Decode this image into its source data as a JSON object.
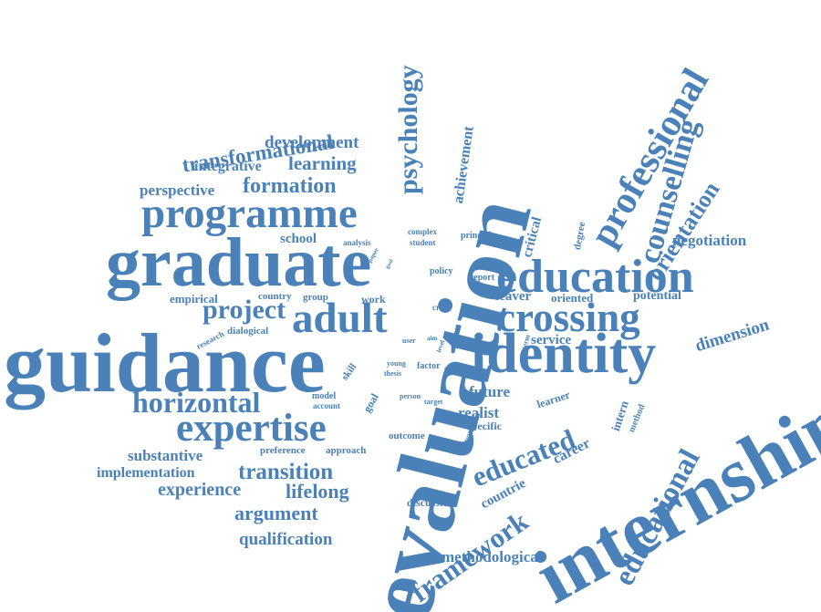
{
  "style": {
    "word_color": "#4a81b8",
    "background": "#ffffff"
  },
  "words": {
    "evaluation": "evaluation",
    "guidance": "guidance",
    "graduate": "graduate",
    "internship": "internship",
    "identity": "identity",
    "education": "education",
    "programme": "programme",
    "crossing": "crossing",
    "adult": "adult",
    "expertise": "expertise",
    "professional": "professional",
    "counselling": "counselling",
    "horizontal": "horizontal",
    "educational": "educational",
    "psychology": "psychology",
    "framework": "framework",
    "educated": "educated",
    "transformational": "transformational",
    "project": "project",
    "orientation": "orientation",
    "formation": "formation",
    "transition": "transition",
    "learning": "learning",
    "argument": "argument",
    "lifelong": "lifelong",
    "experience": "experience",
    "qualification": "qualification",
    "development": "development",
    "dimension": "dimension",
    "negotiation": "negotiation",
    "methodological": "methodological",
    "substantive": "substantive",
    "implementation": "implementation",
    "integrative": "integrative",
    "perspective": "perspective",
    "achievement": "achievement",
    "critical": "critical",
    "realist": "realist",
    "future": "future",
    "career": "career",
    "countrie": "countrie",
    "leaver": "leaver",
    "service": "service",
    "potential": "potential",
    "oriented": "oriented",
    "empirical": "empirical",
    "school": "school",
    "specific": "specific",
    "learner": "learner",
    "intern": "intern",
    "dialogical": "dialogical",
    "preference": "preference",
    "approach": "approach",
    "outcome": "outcome",
    "discussion": "discussion",
    "work": "work",
    "country": "country",
    "group": "group",
    "degree": "degree",
    "policy": "policy",
    "report": "report",
    "principle": "principle",
    "method": "method",
    "skill": "skill",
    "goal": "goal",
    "model": "model",
    "account": "account",
    "factor": "factor",
    "complex": "complex",
    "analysis": "analysis",
    "student": "student",
    "research": "research",
    "user": "user",
    "young": "young",
    "thesis": "thesis",
    "cross": "cross",
    "person": "person",
    "target": "target",
    "support": "support",
    "term": "term",
    "final": "final",
    "hand": "hand",
    "aim": "aim",
    "level": "level",
    "paper": "paper",
    "goal_small": "goal"
  }
}
